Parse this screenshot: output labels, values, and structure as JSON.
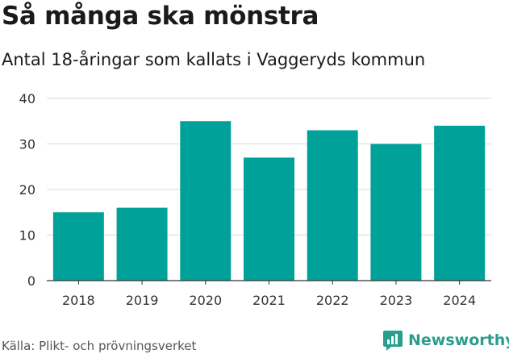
{
  "header": {
    "title": "Så många ska mönstra",
    "subtitle": "Antal 18-åringar som kallats i Vaggeryds kommun"
  },
  "footer": {
    "source": "Källa: Plikt- och prövningsverket",
    "brand": "Newsworthy"
  },
  "colors": {
    "bar": "#00a199",
    "grid": "#d9d9d9",
    "brand": "#2a9d8f"
  },
  "chart_data": {
    "type": "bar",
    "title": "Så många ska mönstra",
    "subtitle": "Antal 18-åringar som kallats i Vaggeryds kommun",
    "categories": [
      "2018",
      "2019",
      "2020",
      "2021",
      "2022",
      "2023",
      "2024"
    ],
    "values": [
      15,
      16,
      35,
      27,
      33,
      30,
      34
    ],
    "xlabel": "",
    "ylabel": "",
    "ylim": [
      0,
      40
    ],
    "yticks": [
      0,
      10,
      20,
      30,
      40
    ],
    "grid": true,
    "legend": "none"
  }
}
